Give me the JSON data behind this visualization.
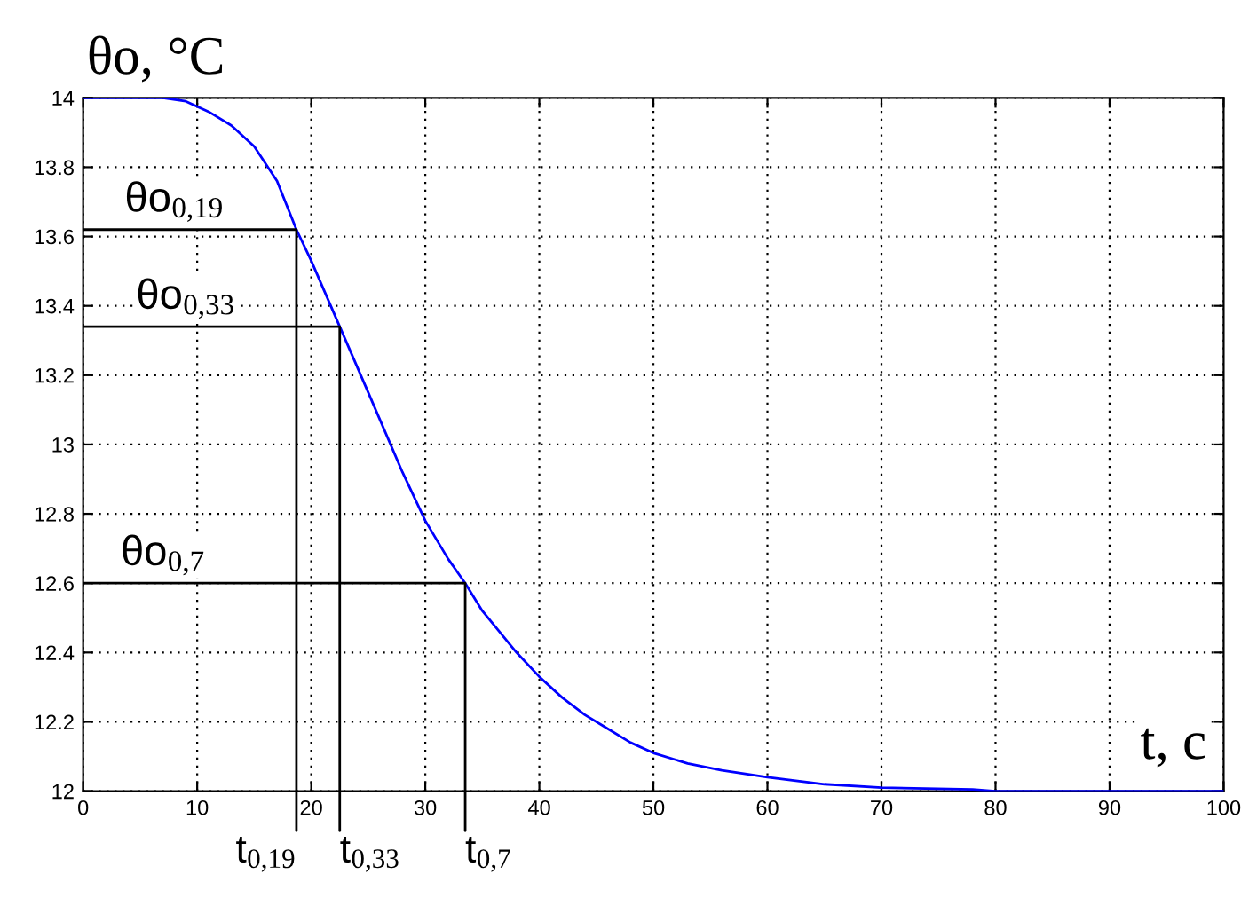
{
  "chart_data": {
    "type": "line",
    "ylabel": "θo, °C",
    "xlabel": "t, c",
    "xlim": [
      0,
      100
    ],
    "xticks": [
      0,
      10,
      20,
      30,
      40,
      50,
      60,
      70,
      80,
      90,
      100
    ],
    "ylim": [
      12,
      14
    ],
    "yticks": [
      12,
      12.2,
      12.4,
      12.6,
      12.8,
      13,
      13.2,
      13.4,
      13.6,
      13.8,
      14
    ],
    "grid": true,
    "line_style": "solid",
    "series": [
      {
        "color": "#0000ff",
        "x": [
          0,
          7,
          9,
          11,
          13,
          15,
          17,
          18.7,
          20,
          22.5,
          25,
          28,
          30,
          32,
          33.5,
          35,
          36.5,
          38,
          40,
          42,
          44,
          46,
          48,
          50,
          53,
          56,
          60,
          65,
          70,
          78,
          80,
          100
        ],
        "values": [
          14,
          14,
          13.99,
          13.96,
          13.92,
          13.86,
          13.76,
          13.62,
          13.53,
          13.34,
          13.15,
          12.92,
          12.78,
          12.67,
          12.6,
          12.52,
          12.46,
          12.4,
          12.33,
          12.27,
          12.22,
          12.18,
          12.14,
          12.11,
          12.08,
          12.06,
          12.04,
          12.02,
          12.01,
          12.005,
          12,
          12
        ]
      },
      {
        "color": "#000000",
        "x": [
          0,
          18.7,
          18.7
        ],
        "values": [
          13.62,
          13.62,
          12
        ]
      },
      {
        "color": "#000000",
        "x": [
          0,
          22.5,
          22.5
        ],
        "values": [
          13.34,
          13.34,
          12
        ]
      },
      {
        "color": "#000000",
        "x": [
          0,
          33.5,
          33.5
        ],
        "values": [
          12.6,
          12.6,
          12
        ]
      }
    ],
    "annotations": [
      {
        "text": "θo$_{0,19}$",
        "x": 8,
        "y": 13.62
      },
      {
        "text": "θo$_{0,33}$",
        "x": 9,
        "y": 13.34
      },
      {
        "text": "θo$_{0,7}$",
        "x": 7,
        "y": 12.6
      },
      {
        "text": "t$_{0,19}$",
        "x": 18.7,
        "y": 12
      },
      {
        "text": "t$_{0,33}$",
        "x": 22.5,
        "y": 12
      },
      {
        "text": "t$_{0,7}$",
        "x": 33.5,
        "y": 12
      }
    ]
  }
}
